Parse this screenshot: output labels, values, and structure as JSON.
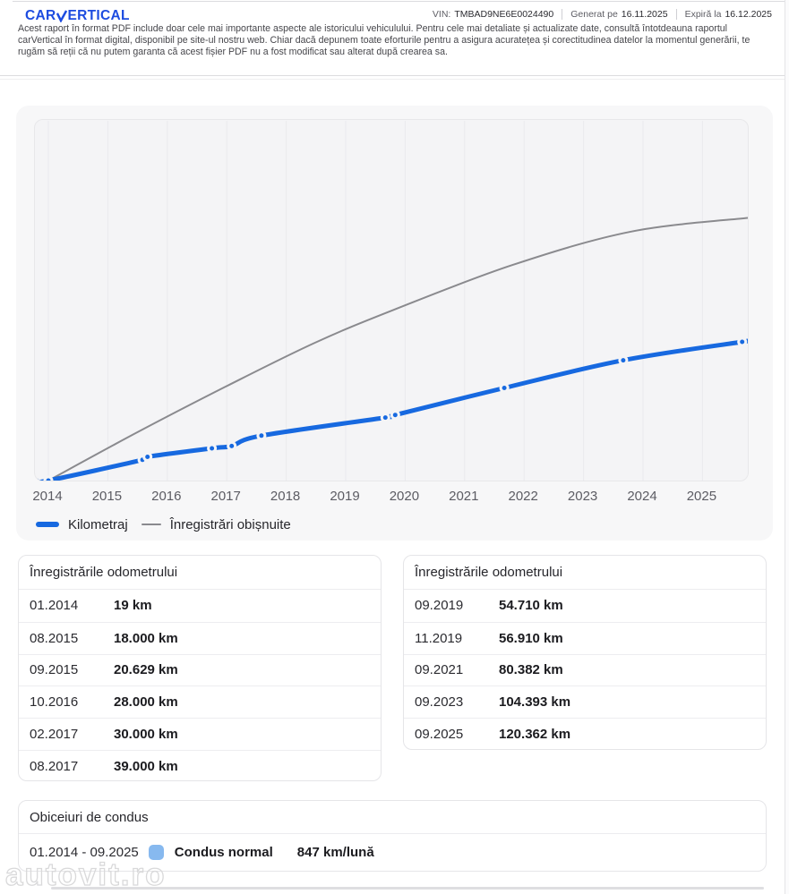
{
  "header": {
    "logo_prefix": "CAR",
    "logo_suffix": "ERTICAL",
    "brand_color": "#1d4ce0",
    "vin_label": "VIN:",
    "vin_value": "TMBAD9NE6E0024490",
    "generated_label": "Generat pe",
    "generated_value": "16.11.2025",
    "expires_label": "Expiră la",
    "expires_value": "16.12.2025",
    "disclaimer": "Acest raport în format PDF include doar cele mai importante aspecte ale istoricului vehiculului. Pentru cele mai detaliate și actualizate date, consultă întotdeauna raportul carVertical în format digital, disponibil pe site-ul nostru web. Chiar dacă depunem toate eforturile pentru a asigura acuratețea și corectitudinea datelor la momentul generării, te rugăm să reții că nu putem garanta că acest fișier PDF nu a fost modificat sau alterat după crearea sa."
  },
  "chart_data": {
    "type": "line",
    "x_ticks": [
      "2014",
      "2015",
      "2016",
      "2017",
      "2018",
      "2019",
      "2020",
      "2021",
      "2022",
      "2023",
      "2024",
      "2025"
    ],
    "grid": "vertical-only",
    "legend_position": "bottom-left",
    "legend": [
      "Kilometraj",
      "Înregistrări obișnuite"
    ],
    "y_axis_labels": "none",
    "series": [
      {
        "name": "Kilometraj",
        "color": "#1769e0",
        "style": "thick line with dot markers",
        "points": [
          {
            "date": "01.2014",
            "km": 19
          },
          {
            "date": "08.2015",
            "km": 18000
          },
          {
            "date": "09.2015",
            "km": 20629
          },
          {
            "date": "10.2016",
            "km": 28000
          },
          {
            "date": "02.2017",
            "km": 30000
          },
          {
            "date": "08.2017",
            "km": 39000
          },
          {
            "date": "09.2019",
            "km": 54710
          },
          {
            "date": "11.2019",
            "km": 56910
          },
          {
            "date": "09.2021",
            "km": 80382
          },
          {
            "date": "09.2023",
            "km": 104393
          },
          {
            "date": "09.2025",
            "km": 120362
          }
        ]
      },
      {
        "name": "Înregistrări obișnuite",
        "color": "#8a8a8e",
        "style": "thin smooth line, no markers",
        "values_estimated": true,
        "estimated_points": [
          {
            "year": 2014.0,
            "km": 0
          },
          {
            "year": 2015.5,
            "km": 42000
          },
          {
            "year": 2017.0,
            "km": 82000
          },
          {
            "year": 2018.5,
            "km": 120000
          },
          {
            "year": 2019.8,
            "km": 148000
          },
          {
            "year": 2021.8,
            "km": 187000
          },
          {
            "year": 2023.8,
            "km": 216000
          },
          {
            "year": 2025.8,
            "km": 228000
          }
        ]
      }
    ]
  },
  "tables": [
    {
      "title": "Înregistrările odometrului",
      "rows": [
        {
          "date": "01.2014",
          "value": "19 km"
        },
        {
          "date": "08.2015",
          "value": "18.000 km"
        },
        {
          "date": "09.2015",
          "value": "20.629 km"
        },
        {
          "date": "10.2016",
          "value": "28.000 km"
        },
        {
          "date": "02.2017",
          "value": "30.000 km"
        },
        {
          "date": "08.2017",
          "value": "39.000 km"
        }
      ]
    },
    {
      "title": "Înregistrările odometrului",
      "rows": [
        {
          "date": "09.2019",
          "value": "54.710 km"
        },
        {
          "date": "11.2019",
          "value": "56.910 km"
        },
        {
          "date": "09.2021",
          "value": "80.382 km"
        },
        {
          "date": "09.2023",
          "value": "104.393 km"
        },
        {
          "date": "09.2025",
          "value": "120.362 km"
        }
      ]
    }
  ],
  "habits": {
    "title": "Obiceiuri de condus",
    "period": "01.2014 - 09.2025",
    "label": "Condus normal",
    "value": "847 km/lună",
    "swatch_color": "#87b9ef"
  },
  "watermark": {
    "text": "autovit.ro"
  }
}
